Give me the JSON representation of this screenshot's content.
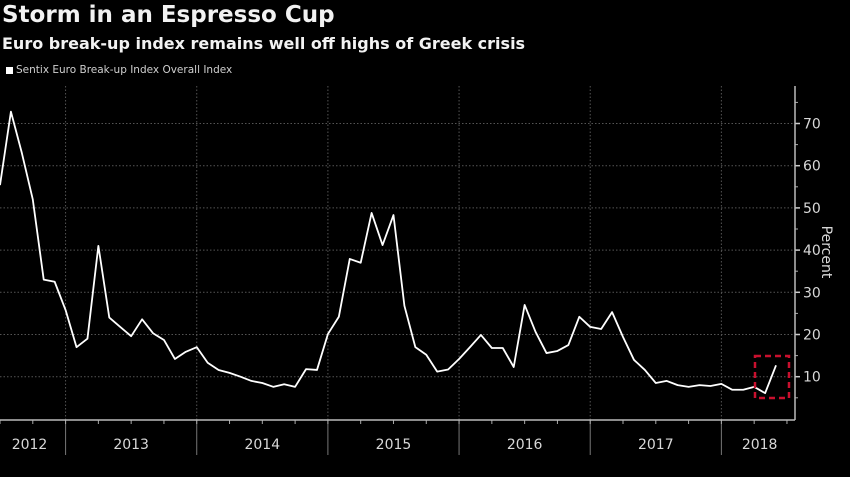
{
  "chart_data": {
    "type": "line",
    "title": "Storm in an Espresso Cup",
    "subtitle": "Euro break-up index remains well off highs of Greek crisis",
    "legend": [
      "Sentix Euro Break-up Index Overall Index"
    ],
    "legend_placement": "top-left",
    "ylabel": "Percent",
    "xlabel": "",
    "ylim": [
      0,
      79
    ],
    "yticks": [
      10,
      20,
      30,
      40,
      50,
      60,
      70
    ],
    "xticks": [
      "2012",
      "2013",
      "2014",
      "2015",
      "2016",
      "2017",
      "2018"
    ],
    "grid": true,
    "start_month": "2012-07",
    "frequency": "monthly",
    "series": [
      {
        "name": "Sentix Euro Break-up Index Overall Index",
        "color": "#ffffff",
        "values": [
          55.4,
          72.8,
          63,
          52,
          33,
          32.5,
          25.8,
          17,
          19,
          41,
          24,
          21.8,
          19.6,
          23.6,
          20.3,
          18.7,
          14.2,
          15.9,
          17,
          13.3,
          11.6,
          10.9,
          10,
          9,
          8.5,
          7.6,
          8.2,
          7.6,
          11.8,
          11.6,
          20.1,
          24.2,
          37.9,
          37,
          48.8,
          41.2,
          48.3,
          26.8,
          17,
          15.2,
          11.2,
          11.7,
          14.2,
          17,
          19.9,
          16.8,
          16.8,
          12.3,
          27,
          20.6,
          15.6,
          16.1,
          17.5,
          24.2,
          21.8,
          21.3,
          25.3,
          19.4,
          14,
          11.6,
          8.5,
          9,
          8,
          7.6,
          8,
          7.8,
          8.3,
          6.9,
          6.9,
          7.6,
          6.1,
          12.7
        ]
      }
    ],
    "annotation": {
      "type": "dashed-box",
      "color": "#c8102e",
      "covers": "latest readings 2018"
    }
  }
}
